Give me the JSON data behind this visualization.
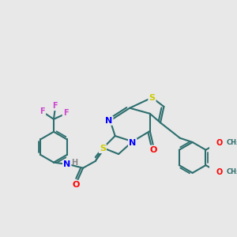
{
  "background_color": "#e8e8e8",
  "bg_rgb": [
    0.91,
    0.91,
    0.91
  ],
  "atom_colors": {
    "N": "#0000ff",
    "O": "#ff0000",
    "S": "#cccc00",
    "F": "#cc44cc",
    "C": "#2d6e6e",
    "H": "#888888"
  },
  "bond_color": "#2d6e6e",
  "line_width": 1.5,
  "font_size": 7
}
